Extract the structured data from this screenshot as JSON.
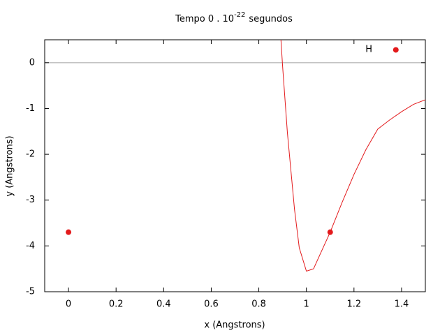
{
  "chart_data": {
    "type": "scatter-line",
    "title": {
      "text": "Tempo 0 . 10",
      "superscript": "-22",
      "suffix": "segundos"
    },
    "x_label": "x (Angstrons)",
    "y_label": "y (Angstrons)",
    "xlim": [
      -0.1,
      1.5
    ],
    "ylim": [
      -5,
      0.5
    ],
    "xticks": [
      0,
      0.2,
      0.4,
      0.6,
      0.8,
      1,
      1.2,
      1.4
    ],
    "yticks": [
      -5,
      -4,
      -3,
      -2,
      -1,
      0
    ],
    "zeroaxis": true,
    "legend": "top-right",
    "series": [
      {
        "name": "H",
        "kind": "points",
        "color": "#e31a1c",
        "x": [
          0,
          1.1,
          1.376
        ],
        "values": [
          -3.7,
          -3.7,
          0.28
        ]
      },
      {
        "kind": "line",
        "color": "#e31a1c",
        "x": [
          0.893,
          0.9,
          0.92,
          0.95,
          0.97,
          1.0,
          1.03,
          1.05,
          1.1,
          1.15,
          1.2,
          1.25,
          1.3,
          1.35,
          1.4,
          1.45,
          1.5
        ],
        "values": [
          0.5,
          -0.08,
          -1.52,
          -3.2,
          -4.04,
          -4.55,
          -4.5,
          -4.27,
          -3.7,
          -3.05,
          -2.44,
          -1.9,
          -1.45,
          -1.25,
          -1.07,
          -0.91,
          -0.81
        ]
      }
    ]
  }
}
